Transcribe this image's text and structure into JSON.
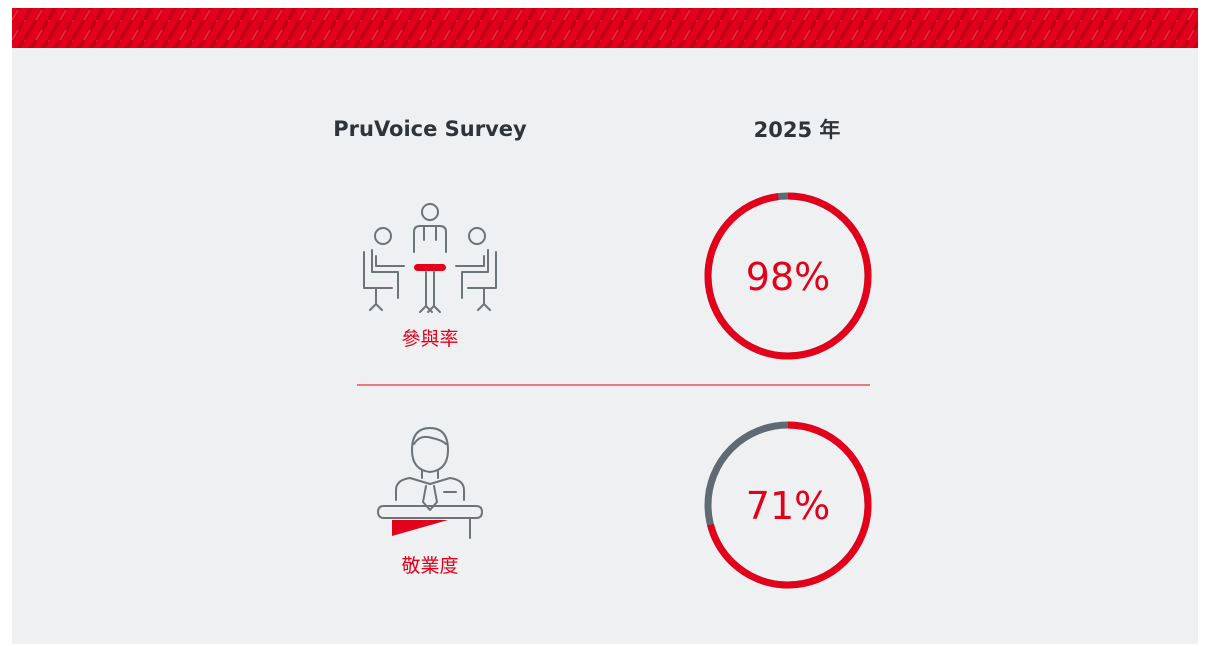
{
  "header": {
    "title": "PruVoice Survey",
    "year": "2025 年"
  },
  "rows": [
    {
      "label": "參與率",
      "value": 98,
      "value_label": "98%"
    },
    {
      "label": "敬業度",
      "value": 71,
      "value_label": "71%"
    }
  ],
  "colors": {
    "accent": "#e3001b",
    "rest": "#5f6a72"
  }
}
